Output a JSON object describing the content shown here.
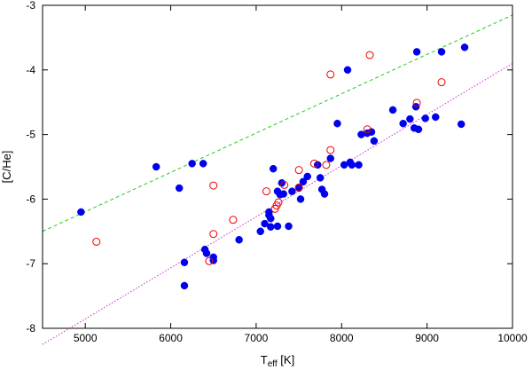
{
  "chart_data": {
    "type": "scatter",
    "xlabel_main": "T",
    "xlabel_sub": "eff",
    "xlabel_unit": " [K]",
    "ylabel": "[C/He]",
    "xlim": [
      4500,
      10000
    ],
    "ylim": [
      -8,
      -3
    ],
    "x_ticks": [
      5000,
      6000,
      7000,
      8000,
      9000,
      10000
    ],
    "y_ticks": [
      -8,
      -7,
      -6,
      -5,
      -4,
      -3
    ],
    "grid": false,
    "series": [
      {
        "marker": "filled-circle",
        "color": "#0000ee",
        "points": [
          [
            4950,
            -6.2
          ],
          [
            5830,
            -5.5
          ],
          [
            6100,
            -5.83
          ],
          [
            6250,
            -5.45
          ],
          [
            6380,
            -5.45
          ],
          [
            6400,
            -6.78
          ],
          [
            6420,
            -6.84
          ],
          [
            6160,
            -6.98
          ],
          [
            6160,
            -7.34
          ],
          [
            6500,
            -6.9
          ],
          [
            6500,
            -6.95
          ],
          [
            6800,
            -6.63
          ],
          [
            7050,
            -6.5
          ],
          [
            7100,
            -6.38
          ],
          [
            7150,
            -6.2
          ],
          [
            7150,
            -6.25
          ],
          [
            7170,
            -6.3
          ],
          [
            7170,
            -6.43
          ],
          [
            7200,
            -5.53
          ],
          [
            7250,
            -5.88
          ],
          [
            7250,
            -6.42
          ],
          [
            7280,
            -5.93
          ],
          [
            7300,
            -5.75
          ],
          [
            7320,
            -5.92
          ],
          [
            7380,
            -6.42
          ],
          [
            7420,
            -5.88
          ],
          [
            7500,
            -5.83
          ],
          [
            7520,
            -6.0
          ],
          [
            7550,
            -5.73
          ],
          [
            7600,
            -5.65
          ],
          [
            7720,
            -5.47
          ],
          [
            7750,
            -5.67
          ],
          [
            7770,
            -5.85
          ],
          [
            7800,
            -5.92
          ],
          [
            7870,
            -5.37
          ],
          [
            7950,
            -4.83
          ],
          [
            8030,
            -5.47
          ],
          [
            8070,
            -4.0
          ],
          [
            8100,
            -5.43
          ],
          [
            8120,
            -5.47
          ],
          [
            8200,
            -5.47
          ],
          [
            8230,
            -5.0
          ],
          [
            8300,
            -4.98
          ],
          [
            8350,
            -4.96
          ],
          [
            8380,
            -5.1
          ],
          [
            8600,
            -4.62
          ],
          [
            8720,
            -4.83
          ],
          [
            8800,
            -4.76
          ],
          [
            8850,
            -4.9
          ],
          [
            8870,
            -4.57
          ],
          [
            8880,
            -3.72
          ],
          [
            8900,
            -4.92
          ],
          [
            8980,
            -4.75
          ],
          [
            9100,
            -4.73
          ],
          [
            9170,
            -3.72
          ],
          [
            9400,
            -4.84
          ],
          [
            9440,
            -3.65
          ]
        ]
      },
      {
        "marker": "open-circle",
        "color": "#ee0000",
        "points": [
          [
            5130,
            -6.66
          ],
          [
            6450,
            -6.96
          ],
          [
            6500,
            -6.54
          ],
          [
            6500,
            -5.79
          ],
          [
            6730,
            -6.32
          ],
          [
            7120,
            -5.88
          ],
          [
            7220,
            -6.15
          ],
          [
            7240,
            -6.1
          ],
          [
            7260,
            -6.05
          ],
          [
            7330,
            -5.78
          ],
          [
            7500,
            -5.55
          ],
          [
            7500,
            -5.82
          ],
          [
            7680,
            -5.45
          ],
          [
            7820,
            -5.47
          ],
          [
            7870,
            -5.24
          ],
          [
            7870,
            -4.07
          ],
          [
            8300,
            -4.92
          ],
          [
            8330,
            -3.77
          ],
          [
            8880,
            -4.51
          ],
          [
            9170,
            -4.19
          ]
        ]
      }
    ],
    "lines": [
      {
        "style": "dashed",
        "color": "#22cc22",
        "x": [
          4500,
          10000
        ],
        "y": [
          -6.5,
          -3.15
        ]
      },
      {
        "style": "dotted",
        "color": "#dd22dd",
        "x": [
          4500,
          10000
        ],
        "y": [
          -8.25,
          -3.9
        ]
      }
    ]
  }
}
